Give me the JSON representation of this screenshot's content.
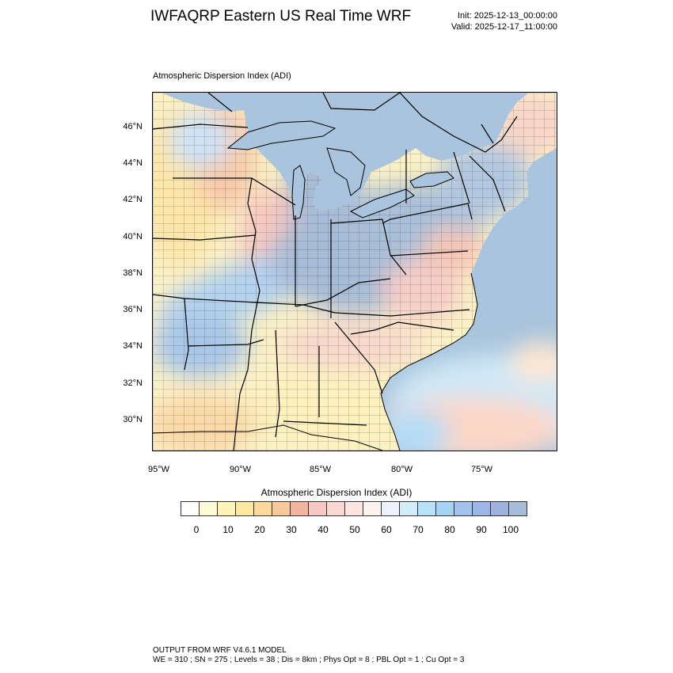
{
  "title": "IWFAQRP Eastern US Real Time WRF",
  "init_label": "Init: 2025-12-13_00:00:00",
  "valid_label": "Valid: 2025-12-17_11:00:00",
  "panel_title": "Atmospheric Dispersion Index   (ADI)",
  "lat_labels": [
    "46°N",
    "44°N",
    "42°N",
    "40°N",
    "38°N",
    "36°N",
    "34°N",
    "32°N",
    "30°N"
  ],
  "lon_labels": [
    "95°W",
    "90°W",
    "85°W",
    "80°W",
    "75°W"
  ],
  "colorbar": {
    "title": "Atmospheric Dispersion Index  (ADI)",
    "tick_labels": [
      "0",
      "10",
      "20",
      "30",
      "40",
      "50",
      "60",
      "70",
      "80",
      "90",
      "100"
    ],
    "colors": [
      "#ffffff",
      "#fffbd6",
      "#fff3b8",
      "#fde8a2",
      "#fbd99a",
      "#f8c99a",
      "#f4b5a0",
      "#f6c8c4",
      "#fad7d3",
      "#fde5e2",
      "#fdf2f0",
      "#eef1fa",
      "#d3ecfa",
      "#b8e2f8",
      "#a4d3f4",
      "#a3c3ee",
      "#9eb6e6",
      "#9fb2dd",
      "#a7bcd6"
    ]
  },
  "footer": {
    "line1": "OUTPUT FROM WRF V4.6.1 MODEL",
    "line2": "WE = 310 ; SN = 275 ; Levels = 38 ; Dis = 8km ; Phys Opt = 8 ; PBL Opt = 1 ; Cu Opt = 3"
  }
}
